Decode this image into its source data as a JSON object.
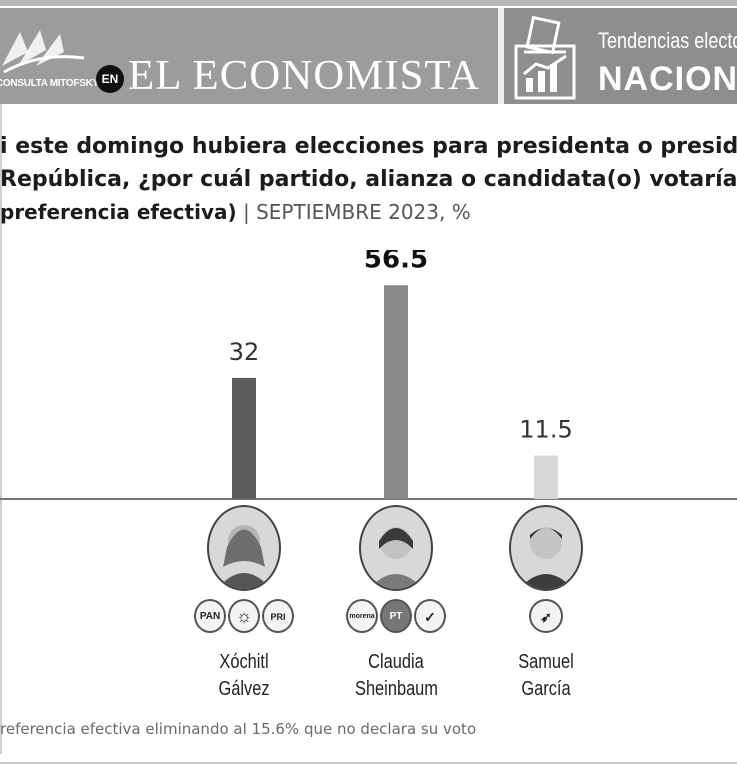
{
  "header": {
    "partner_logo_text": "CONSULTA MITOFSKY",
    "en_badge": "EN",
    "brand": "EL ECONOMISTA",
    "section_line1": "Tendencias electo",
    "section_line2": "NACION"
  },
  "question": {
    "line1": "i este domingo hubiera elecciones para presidenta o presidente d",
    "line2": "República, ¿por cuál partido, alianza o candidata(o) votaría?",
    "sub_bold": "preferencia efectiva)",
    "sub_light": " | SEPTIEMBRE 2023, %"
  },
  "chart_data": {
    "type": "bar",
    "categories": [
      "Xóchitl Gálvez",
      "Claudia Sheinbaum",
      "Samuel García"
    ],
    "values": [
      32,
      56.5,
      11.5
    ],
    "value_labels": [
      "32",
      "56.5",
      "11.5"
    ],
    "ylim": [
      0,
      60
    ],
    "bar_colors": [
      "#5c5c5c",
      "#8a8a8a",
      "#d8d8d8"
    ],
    "grid": false,
    "title": "",
    "xlabel": "",
    "ylabel": ""
  },
  "candidates": [
    {
      "name_line1": "Xóchitl",
      "name_line2": "Gálvez",
      "parties": [
        "PAN",
        "PRD",
        "PRI"
      ]
    },
    {
      "name_line1": "Claudia",
      "name_line2": "Sheinbaum",
      "parties": [
        "morena",
        "PT",
        "PVEM"
      ]
    },
    {
      "name_line1": "Samuel",
      "name_line2": "García",
      "parties": [
        "MC"
      ]
    }
  ],
  "footnote": "referencia efectiva eliminando al 15.6% que no declara su voto"
}
